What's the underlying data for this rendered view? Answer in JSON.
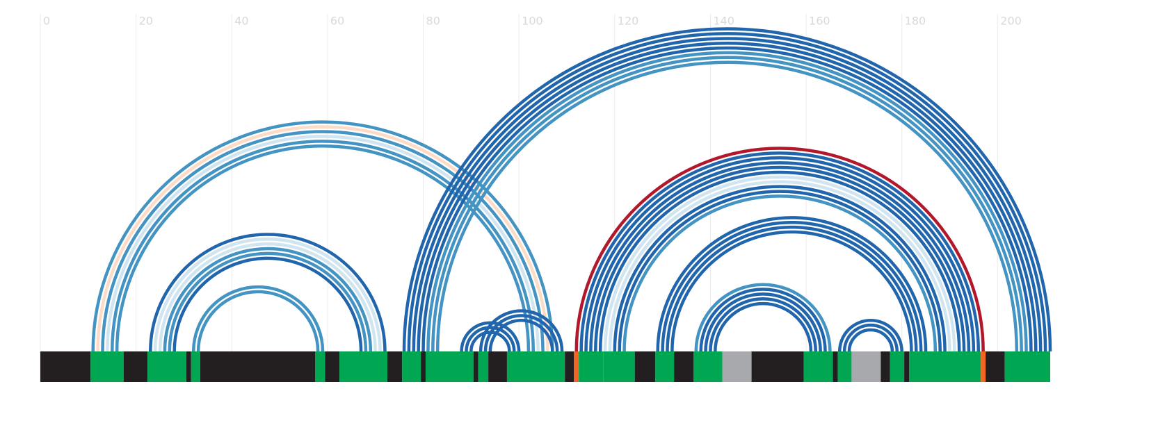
{
  "chart_data": {
    "type": "arc",
    "xlim": [
      0,
      211
    ],
    "xticks": [
      0,
      20,
      40,
      60,
      80,
      100,
      120,
      140,
      160,
      180,
      200
    ],
    "grid": true,
    "arcs": [
      {
        "i": 11,
        "j": 107,
        "color": "#4393c3"
      },
      {
        "i": 12,
        "j": 106,
        "color": "#fddbc7"
      },
      {
        "i": 13,
        "j": 105,
        "color": "#4393c3"
      },
      {
        "i": 14,
        "j": 104,
        "color": "#d1e5f0"
      },
      {
        "i": 15,
        "j": 103,
        "color": "#4393c3"
      },
      {
        "i": 16,
        "j": 102,
        "color": "#4393c3"
      },
      {
        "i": 23,
        "j": 72,
        "color": "#2166ac"
      },
      {
        "i": 24,
        "j": 71,
        "color": "#d1e5f0"
      },
      {
        "i": 25,
        "j": 70,
        "color": "#d1e5f0"
      },
      {
        "i": 26,
        "j": 69,
        "color": "#4393c3"
      },
      {
        "i": 27,
        "j": 68,
        "color": "#4393c3"
      },
      {
        "i": 28,
        "j": 67,
        "color": "#2166ac"
      },
      {
        "i": 32,
        "j": 59,
        "color": "#4393c3"
      },
      {
        "i": 33,
        "j": 58,
        "color": "#4393c3"
      },
      {
        "i": 76,
        "j": 211,
        "color": "#2166ac"
      },
      {
        "i": 77,
        "j": 210,
        "color": "#2166ac"
      },
      {
        "i": 78,
        "j": 209,
        "color": "#2166ac"
      },
      {
        "i": 79,
        "j": 208,
        "color": "#2166ac"
      },
      {
        "i": 80,
        "j": 207,
        "color": "#2166ac"
      },
      {
        "i": 81,
        "j": 206,
        "color": "#4393c3"
      },
      {
        "i": 82,
        "j": 205,
        "color": "#4393c3"
      },
      {
        "i": 83,
        "j": 204,
        "color": "#4393c3"
      },
      {
        "i": 88,
        "j": 100,
        "color": "#2166ac"
      },
      {
        "i": 89,
        "j": 99,
        "color": "#2166ac"
      },
      {
        "i": 90,
        "j": 98,
        "color": "#2166ac"
      },
      {
        "i": 92,
        "j": 109,
        "color": "#2166ac"
      },
      {
        "i": 93,
        "j": 108,
        "color": "#2166ac"
      },
      {
        "i": 94,
        "j": 107,
        "color": "#2166ac"
      },
      {
        "i": 112,
        "j": 197,
        "color": "#b2182b"
      },
      {
        "i": 113,
        "j": 196,
        "color": "#2166ac"
      },
      {
        "i": 114,
        "j": 195,
        "color": "#2166ac"
      },
      {
        "i": 115,
        "j": 194,
        "color": "#2166ac"
      },
      {
        "i": 116,
        "j": 193,
        "color": "#2166ac"
      },
      {
        "i": 117,
        "j": 192,
        "color": "#2166ac"
      },
      {
        "i": 118,
        "j": 191,
        "color": "#d1e5f0"
      },
      {
        "i": 119,
        "j": 190,
        "color": "#d1e5f0"
      },
      {
        "i": 120,
        "j": 189,
        "color": "#2166ac"
      },
      {
        "i": 121,
        "j": 188,
        "color": "#2166ac"
      },
      {
        "i": 122,
        "j": 187,
        "color": "#4393c3"
      },
      {
        "i": 129,
        "j": 185,
        "color": "#2166ac"
      },
      {
        "i": 130,
        "j": 184,
        "color": "#2166ac"
      },
      {
        "i": 131,
        "j": 183,
        "color": "#2166ac"
      },
      {
        "i": 132,
        "j": 182,
        "color": "#2166ac"
      },
      {
        "i": 137,
        "j": 165,
        "color": "#4393c3"
      },
      {
        "i": 138,
        "j": 164,
        "color": "#2166ac"
      },
      {
        "i": 139,
        "j": 163,
        "color": "#2166ac"
      },
      {
        "i": 140,
        "j": 162,
        "color": "#2166ac"
      },
      {
        "i": 141,
        "j": 161,
        "color": "#2166ac"
      },
      {
        "i": 167,
        "j": 180,
        "color": "#2166ac"
      },
      {
        "i": 168,
        "j": 179,
        "color": "#2166ac"
      },
      {
        "i": 169,
        "j": 178,
        "color": "#2166ac"
      }
    ],
    "track": [
      {
        "start": 0,
        "end": 10.5,
        "color": "#231f20"
      },
      {
        "start": 10.5,
        "end": 17.4,
        "color": "#00a651"
      },
      {
        "start": 17.4,
        "end": 22.4,
        "color": "#231f20"
      },
      {
        "start": 22.4,
        "end": 30.5,
        "color": "#00a651"
      },
      {
        "start": 30.5,
        "end": 31.5,
        "color": "#231f20"
      },
      {
        "start": 31.5,
        "end": 33.4,
        "color": "#00a651"
      },
      {
        "start": 33.4,
        "end": 57.4,
        "color": "#231f20"
      },
      {
        "start": 57.4,
        "end": 59.5,
        "color": "#00a651"
      },
      {
        "start": 59.5,
        "end": 62.5,
        "color": "#231f20"
      },
      {
        "start": 62.5,
        "end": 72.5,
        "color": "#00a651"
      },
      {
        "start": 72.5,
        "end": 75.6,
        "color": "#231f20"
      },
      {
        "start": 75.6,
        "end": 79.5,
        "color": "#00a651"
      },
      {
        "start": 79.5,
        "end": 80.5,
        "color": "#231f20"
      },
      {
        "start": 80.5,
        "end": 90.5,
        "color": "#00a651"
      },
      {
        "start": 90.5,
        "end": 91.5,
        "color": "#231f20"
      },
      {
        "start": 91.5,
        "end": 93.6,
        "color": "#00a651"
      },
      {
        "start": 93.6,
        "end": 97.5,
        "color": "#231f20"
      },
      {
        "start": 97.5,
        "end": 109.6,
        "color": "#00a651"
      },
      {
        "start": 109.6,
        "end": 111.5,
        "color": "#231f20"
      },
      {
        "start": 111.5,
        "end": 112.5,
        "color": "#f26522"
      },
      {
        "start": 112.5,
        "end": 117.6,
        "color": "#00a651"
      },
      {
        "start": 117.6,
        "end": 124.2,
        "color": "#00a651"
      },
      {
        "start": 124.2,
        "end": 128.5,
        "color": "#231f20"
      },
      {
        "start": 128.5,
        "end": 132.4,
        "color": "#00a651"
      },
      {
        "start": 132.4,
        "end": 136.5,
        "color": "#231f20"
      },
      {
        "start": 136.5,
        "end": 142.5,
        "color": "#00a651"
      },
      {
        "start": 142.5,
        "end": 148.6,
        "color": "#a7a9ac"
      },
      {
        "start": 148.6,
        "end": 159.5,
        "color": "#231f20"
      },
      {
        "start": 159.5,
        "end": 165.6,
        "color": "#00a651"
      },
      {
        "start": 165.6,
        "end": 166.6,
        "color": "#231f20"
      },
      {
        "start": 166.6,
        "end": 169.5,
        "color": "#00a651"
      },
      {
        "start": 169.5,
        "end": 175.6,
        "color": "#a7a9ac"
      },
      {
        "start": 175.6,
        "end": 177.5,
        "color": "#231f20"
      },
      {
        "start": 177.5,
        "end": 180.5,
        "color": "#00a651"
      },
      {
        "start": 180.5,
        "end": 181.5,
        "color": "#231f20"
      },
      {
        "start": 181.5,
        "end": 196.5,
        "color": "#00a651"
      },
      {
        "start": 196.5,
        "end": 197.5,
        "color": "#f26522"
      },
      {
        "start": 197.5,
        "end": 201.5,
        "color": "#231f20"
      },
      {
        "start": 201.5,
        "end": 211,
        "color": "#00a651"
      }
    ]
  }
}
